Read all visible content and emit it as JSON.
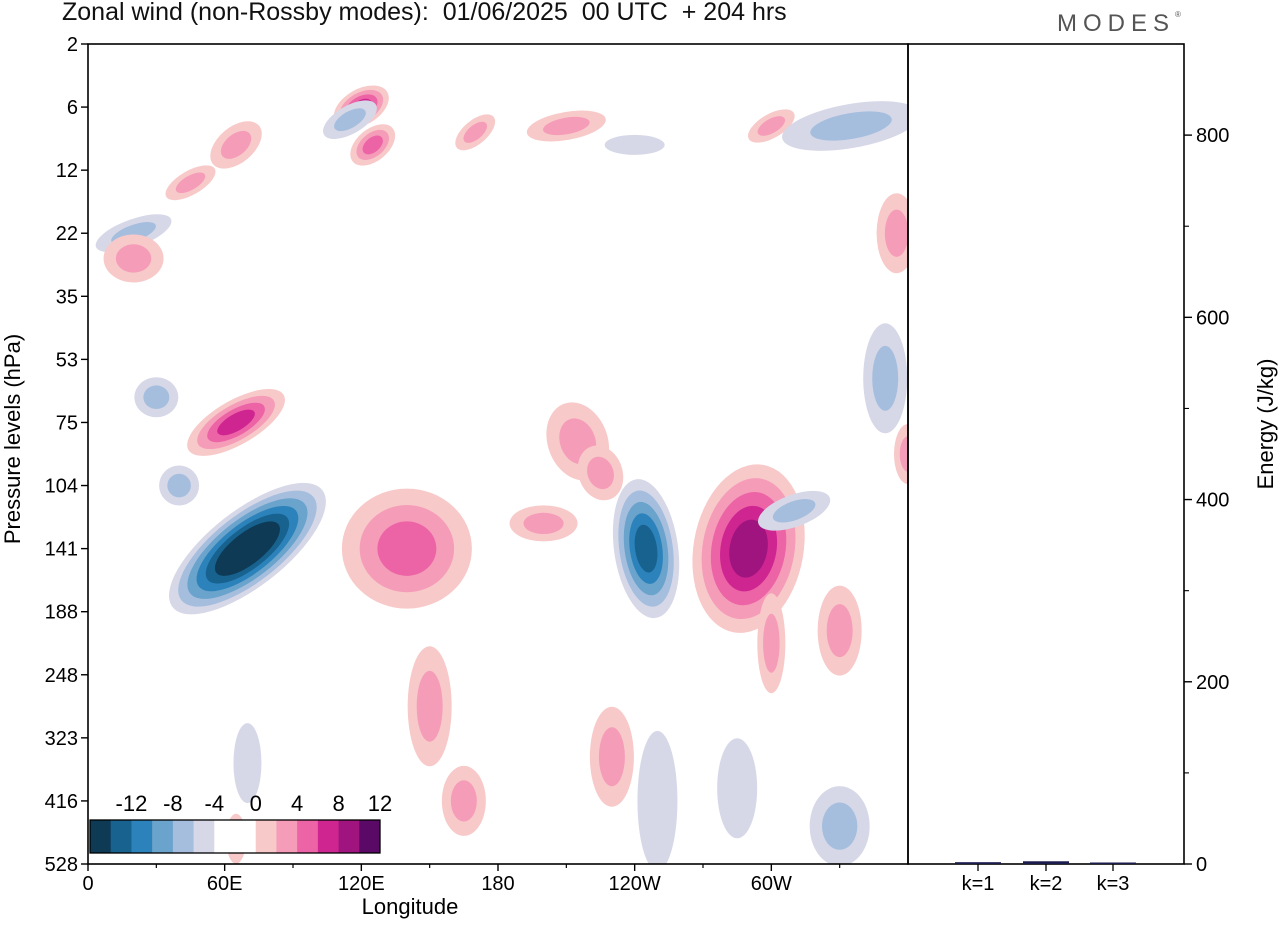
{
  "title": "Zonal wind (non-Rossby modes):  01/06/2025  00 UTC  + 204 hrs",
  "brand": "MODES",
  "brand_mark": "®",
  "colors": {
    "negative": [
      "#0e3a55",
      "#17628f",
      "#2c82bb",
      "#6aa3cb",
      "#a6bede",
      "#d6d8e8"
    ],
    "zero": "#ffffff",
    "positive": [
      "#f8c9c9",
      "#f59cb9",
      "#ec64a6",
      "#cf2591",
      "#a0147f",
      "#5a0a66"
    ]
  },
  "chart_data": [
    {
      "type": "heatmap",
      "title": "",
      "xlabel": "Longitude",
      "ylabel": "Pressure levels (hPa)",
      "x_ticks": [
        "0",
        "60E",
        "120E",
        "180",
        "120W",
        "60W"
      ],
      "x_tick_values": [
        0,
        60,
        120,
        180,
        240,
        300
      ],
      "x_range": [
        0,
        360
      ],
      "y_ticks": [
        "2",
        "6",
        "12",
        "22",
        "35",
        "53",
        "75",
        "104",
        "141",
        "188",
        "248",
        "323",
        "416",
        "528"
      ],
      "colorbar": {
        "tick_labels": [
          "-12",
          "-8",
          "-4",
          "0",
          "4",
          "8",
          "12"
        ],
        "levels": [
          -14,
          -12,
          -10,
          -8,
          -6,
          -4,
          -2,
          2,
          4,
          6,
          8,
          10,
          12,
          14
        ]
      },
      "features": [
        {
          "lon": 70,
          "level": "141",
          "value": -14
        },
        {
          "lon": 245,
          "level": "141",
          "value": -10
        },
        {
          "lon": 65,
          "level": "75",
          "value": 9
        },
        {
          "lon": 290,
          "level": "141",
          "value": 10
        },
        {
          "lon": 140,
          "level": "141",
          "value": 6
        },
        {
          "lon": 120,
          "level": "6",
          "value": 8
        }
      ]
    },
    {
      "type": "bar",
      "title": "",
      "ylabel": "Energy (J/kg)",
      "categories": [
        "k=1",
        "k=2",
        "k=3"
      ],
      "values": [
        2,
        3,
        1
      ],
      "ylim": [
        0,
        900
      ],
      "y_ticks": [
        0,
        200,
        400,
        600,
        800
      ]
    }
  ]
}
